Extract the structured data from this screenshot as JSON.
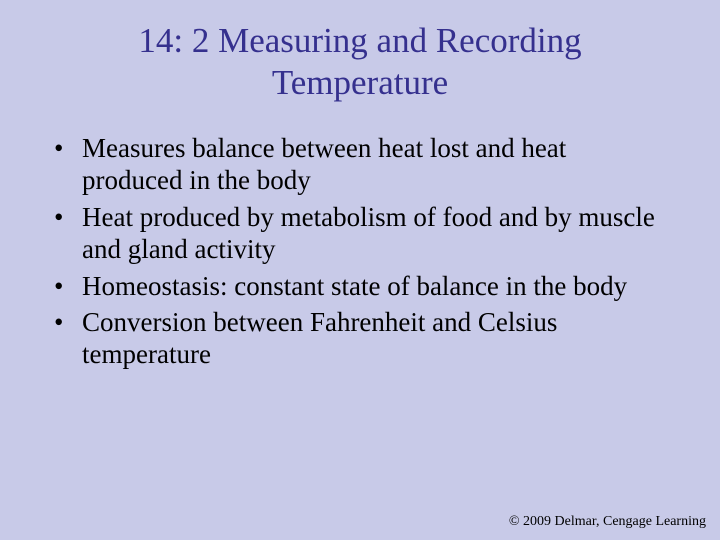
{
  "slide": {
    "background_color": "#c8cae8",
    "title": {
      "line1": "14: 2 Measuring and Recording",
      "line2": "Temperature",
      "color": "#35308e",
      "fontsize_pt": 35,
      "font_family": "Times New Roman",
      "font_weight": "normal",
      "align": "center"
    },
    "bullets": {
      "items": [
        "Measures balance between heat lost and heat produced in the body",
        "Heat produced by metabolism of food and by muscle and gland activity",
        "Homeostasis: constant state of balance in the body",
        "Conversion between Fahrenheit and Celsius temperature"
      ],
      "color": "#000000",
      "fontsize_pt": 27,
      "font_family": "Times New Roman",
      "bullet_char": "•"
    },
    "footer": {
      "text": "© 2009 Delmar, Cengage Learning",
      "color": "#000000",
      "fontsize_pt": 14
    }
  }
}
